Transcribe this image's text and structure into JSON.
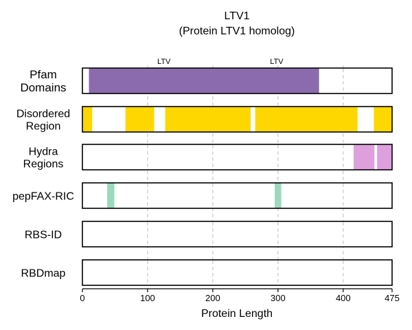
{
  "chart_data": {
    "type": "bar",
    "title": "LTV1",
    "subtitle": "(Protein LTV1 homolog)",
    "xlabel": "Protein Length",
    "xlim": [
      0,
      475
    ],
    "xticks": [
      0,
      100,
      200,
      300,
      400,
      475
    ],
    "grid": "vertical dashed at 100, 200, 300, 400",
    "tracks": [
      {
        "label": [
          "Pfam",
          "Domains"
        ],
        "color": "#8B6BAE",
        "segments": [
          {
            "start": 10,
            "end": 363
          }
        ],
        "annotations": [
          {
            "text": "LTV",
            "x": 125
          },
          {
            "text": "LTV",
            "x": 298
          }
        ]
      },
      {
        "label": [
          "Disordered",
          "Region"
        ],
        "color": "#FFD700",
        "segments": [
          {
            "start": 0,
            "end": 15
          },
          {
            "start": 66,
            "end": 110
          },
          {
            "start": 127,
            "end": 258
          },
          {
            "start": 265,
            "end": 422
          },
          {
            "start": 447,
            "end": 475
          }
        ]
      },
      {
        "label": [
          "Hydra",
          "Regions"
        ],
        "color": "#DDA0DD",
        "segments": [
          {
            "start": 416,
            "end": 448
          },
          {
            "start": 452,
            "end": 475
          }
        ]
      },
      {
        "label": [
          "pepFAX-RIC"
        ],
        "color": "#9AD9BE",
        "segments": [
          {
            "start": 38,
            "end": 49
          },
          {
            "start": 295,
            "end": 305
          }
        ]
      },
      {
        "label": [
          "RBS-ID"
        ],
        "color": "#9AD9BE",
        "segments": []
      },
      {
        "label": [
          "RBDmap"
        ],
        "color": "#9AD9BE",
        "segments": []
      }
    ]
  }
}
